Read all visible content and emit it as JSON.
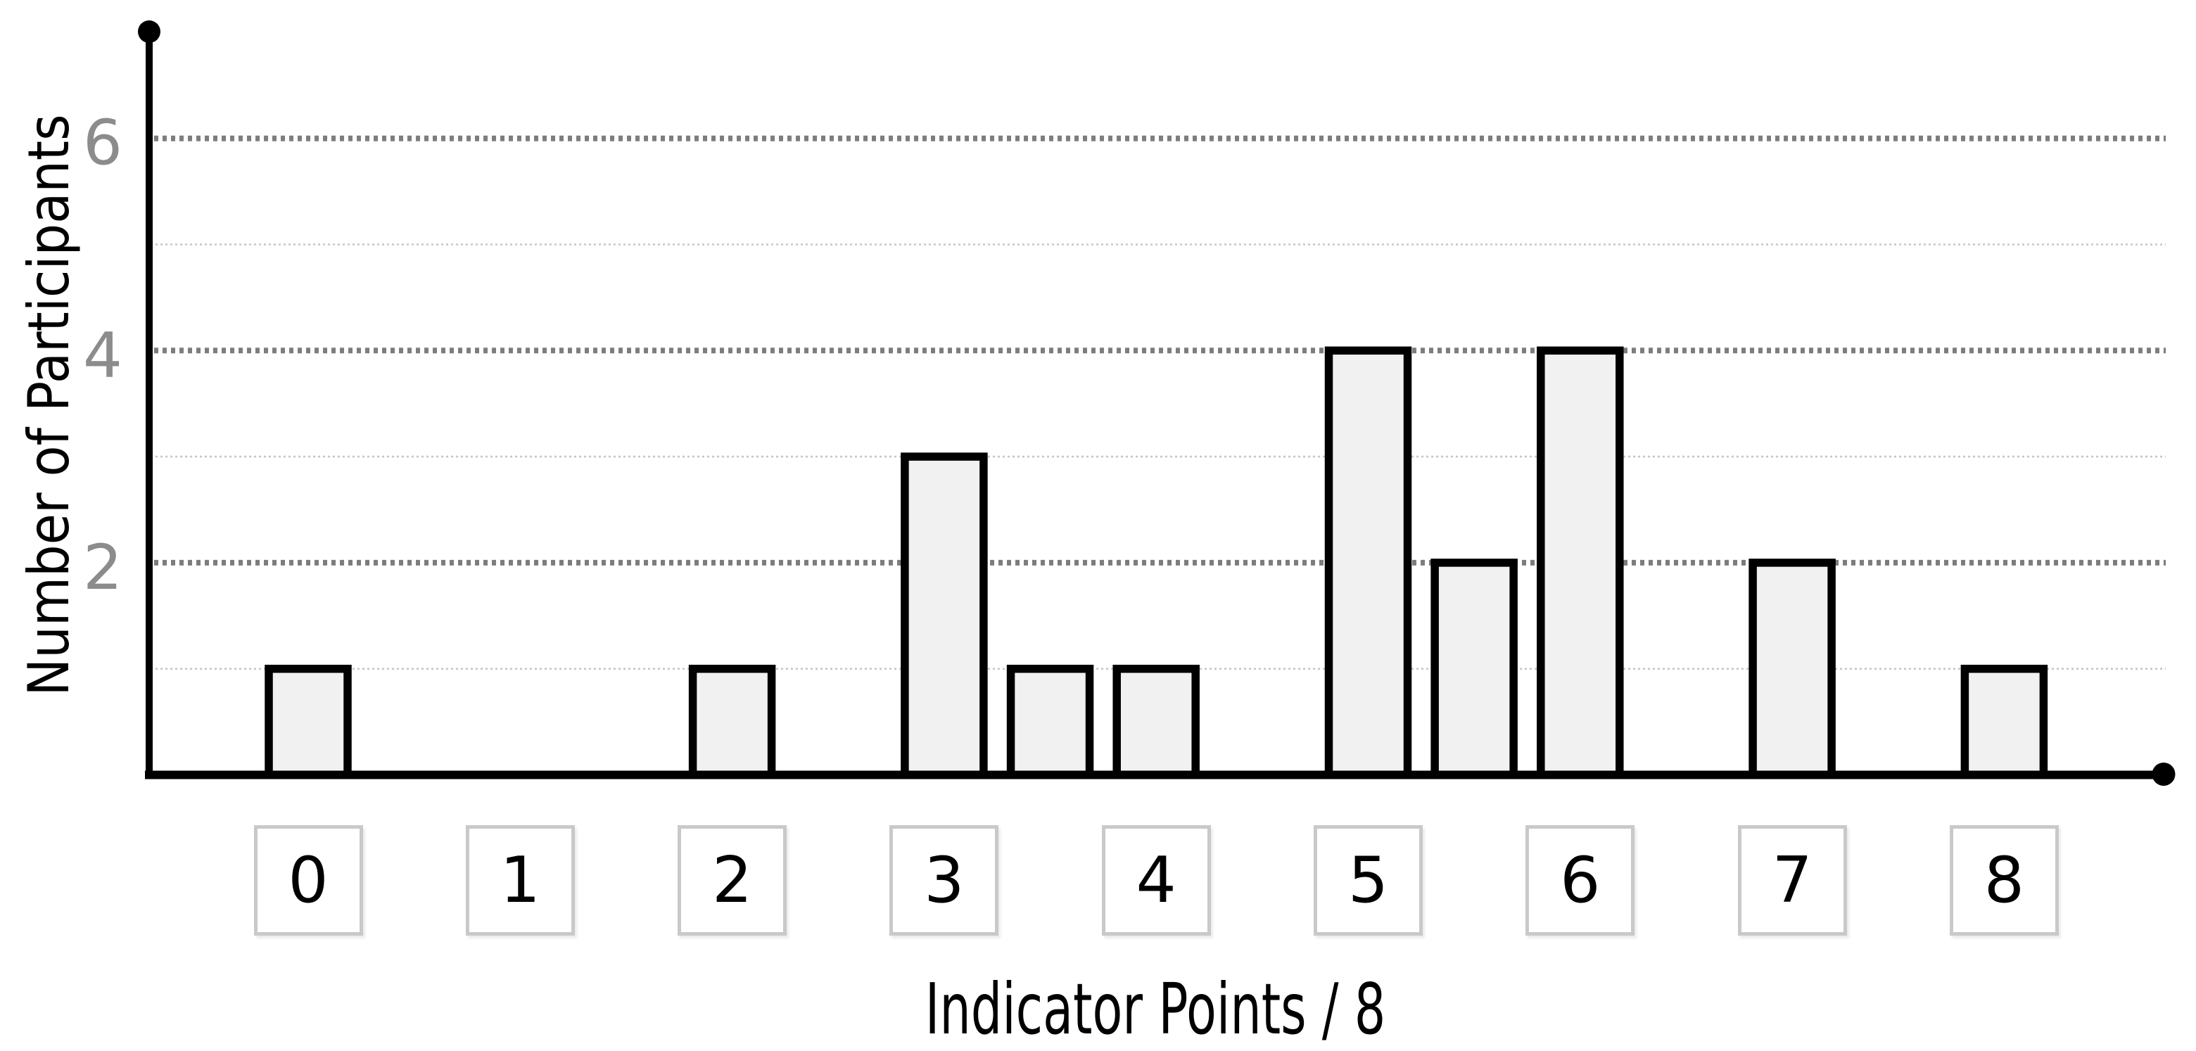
{
  "page": {
    "background": "#ffffff"
  },
  "chart_data": {
    "type": "bar",
    "title": "",
    "xlabel": "Indicator Points / 8",
    "ylabel": "Number of Participants",
    "categories": [
      "0",
      "1",
      "2",
      "3",
      "4",
      "5",
      "6",
      "7",
      "8"
    ],
    "x": [
      0,
      2,
      3,
      3.5,
      4,
      5,
      5.5,
      6,
      7,
      8
    ],
    "values": [
      1,
      1,
      3,
      1,
      1,
      4,
      2,
      4,
      2,
      1
    ],
    "bar_width_units": 0.41,
    "ylim": [
      0,
      7
    ],
    "yticks": [
      2,
      4,
      6
    ],
    "gridlines": {
      "major_at": [
        2,
        4,
        6
      ],
      "minor_at": [
        1,
        3,
        5
      ]
    },
    "legend": "none",
    "colors": {
      "bar_fill": "#f1f1f1",
      "bar_stroke": "#000000",
      "axis": "#000000",
      "grid_major": "#7d7d7d",
      "grid_minor": "#c6c6c6",
      "tick_label": "#8c8c8c",
      "category_box_border": "#c9c9c9",
      "category_box_fill": "#ffffff",
      "category_text": "#000000",
      "title_text": "#000000"
    }
  }
}
